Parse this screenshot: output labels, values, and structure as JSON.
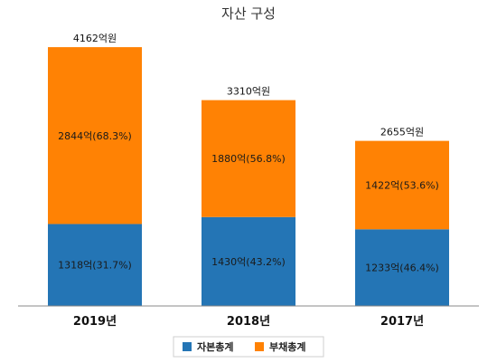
{
  "colors": {
    "equity": "#2475b5",
    "liabilities": "#ff8204",
    "axis": "#888888",
    "legend_border": "#cfcfcf"
  },
  "chart_data": {
    "type": "bar",
    "stacked": true,
    "title": "자산 구성",
    "categories": [
      "2019년",
      "2018년",
      "2017년"
    ],
    "totals": [
      4162,
      3310,
      2655
    ],
    "total_labels": [
      "4162억원",
      "3310억원",
      "2655억원"
    ],
    "series": [
      {
        "name": "자본총계",
        "color_key": "equity",
        "values": [
          1318,
          1430,
          1233
        ],
        "labels": [
          "1318억(31.7%)",
          "1430억(43.2%)",
          "1233억(46.4%)"
        ]
      },
      {
        "name": "부채총계",
        "color_key": "liabilities",
        "values": [
          2844,
          1880,
          1422
        ],
        "labels": [
          "2844억(68.3%)",
          "1880억(56.8%)",
          "1422억(53.6%)"
        ]
      }
    ],
    "ylim": [
      0,
      4600
    ],
    "grid": false,
    "legend_position": "bottom"
  }
}
